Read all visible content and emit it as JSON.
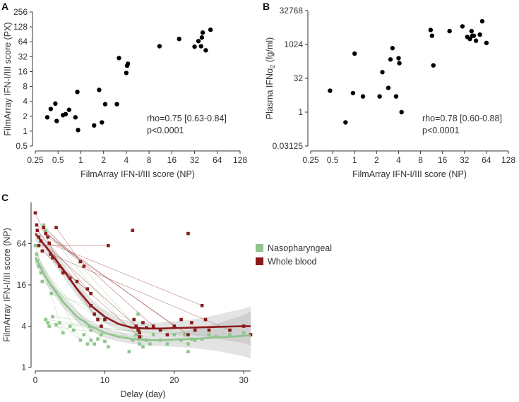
{
  "panel_labels": {
    "a": "A",
    "b": "B",
    "c": "C"
  },
  "colors": {
    "axis": "#333333",
    "points": "#000000",
    "nasopharyngeal": "#8fc48c",
    "whole_blood": "#8b1a1a",
    "band": "#9a9a9a"
  },
  "legend": {
    "nasopharyngeal": "Nasopharyngeal",
    "whole_blood": "Whole blood"
  },
  "panel_a": {
    "annotation": {
      "rho": "rho=0.75 [0.63-0.84]",
      "p": "p<0.0001"
    }
  },
  "panel_b": {
    "annotation": {
      "rho": "rho=0.78 [0.60-0.88]",
      "p": "p<0.0001"
    }
  },
  "chart_data": [
    {
      "id": "A",
      "type": "scatter",
      "xlabel": "FilmArray IFN-I/III score (NP)",
      "ylabel": "FilmArray IFN-I/III score (PX)",
      "xscale": "log2",
      "yscale": "log2",
      "xlim": [
        0.25,
        128
      ],
      "ylim": [
        0.5,
        256
      ],
      "xticks": [
        0.25,
        0.5,
        1,
        2,
        4,
        8,
        16,
        32,
        64,
        128
      ],
      "xtick_labels": [
        "0.25",
        "0.5",
        "1",
        "2",
        "4",
        "8",
        "16",
        "32",
        "64",
        "128"
      ],
      "yticks": [
        0.5,
        1,
        2,
        4,
        8,
        16,
        32,
        64,
        128,
        256
      ],
      "ytick_labels": [
        "0.5",
        "1",
        "2",
        "4",
        "8",
        "16",
        "32",
        "64",
        "128",
        "256"
      ],
      "x": [
        0.36,
        0.4,
        0.46,
        0.48,
        0.58,
        0.63,
        0.7,
        0.85,
        0.92,
        0.9,
        1.5,
        1.75,
        1.9,
        2.1,
        3.0,
        3.2,
        4.0,
        4.1,
        4.2,
        11,
        20,
        32,
        36,
        39,
        40,
        41,
        45,
        52
      ],
      "y": [
        1.9,
        2.8,
        3.6,
        1.6,
        2.1,
        2.2,
        2.7,
        1.9,
        1.05,
        6.2,
        1.3,
        6.8,
        1.5,
        3.5,
        3.5,
        30,
        15,
        21,
        23,
        52,
        73,
        51,
        66,
        52,
        78,
        98,
        43,
        112
      ]
    },
    {
      "id": "B",
      "type": "scatter",
      "xlabel": "FilmArray IFN-I/III score (NP)",
      "ylabel": "Plasma IFNα2 (fg/ml)",
      "xscale": "log2",
      "yscale": "log2",
      "xlim": [
        0.25,
        128
      ],
      "ylim": [
        0.03125,
        32768
      ],
      "xticks": [
        0.25,
        0.5,
        1,
        2,
        4,
        8,
        16,
        32,
        64,
        128
      ],
      "xtick_labels": [
        "0.25",
        "0.5",
        "1",
        "2",
        "4",
        "8",
        "16",
        "32",
        "64",
        "128"
      ],
      "yticks": [
        0.03125,
        1,
        32,
        1024,
        32768
      ],
      "ytick_labels": [
        "0.03125",
        "1",
        "32",
        "1024",
        "32768"
      ],
      "x": [
        0.46,
        0.75,
        0.95,
        1.0,
        1.3,
        2.2,
        2.4,
        2.9,
        3.1,
        3.3,
        3.7,
        4.0,
        4.1,
        4.4,
        11,
        11.5,
        12,
        20,
        30,
        35,
        38,
        40,
        41,
        43,
        46,
        52,
        56,
        64
      ],
      "y": [
        9,
        0.35,
        7,
        400,
        5,
        5,
        60,
        12,
        220,
        700,
        5,
        250,
        150,
        1,
        4500,
        2500,
        120,
        4000,
        6500,
        2200,
        1800,
        4000,
        2500,
        2500,
        1500,
        2800,
        11000,
        1200
      ]
    },
    {
      "id": "C",
      "type": "scatter",
      "xlabel": "Delay (day)",
      "ylabel": "FilmArray IFN-I/III score (NP)",
      "yscale": "log2",
      "xlim": [
        0,
        31
      ],
      "ylim": [
        1,
        256
      ],
      "xticks": [
        0,
        10,
        20,
        30
      ],
      "xtick_labels": [
        "0",
        "10",
        "20",
        "30"
      ],
      "yticks": [
        1,
        4,
        16,
        64
      ],
      "ytick_labels": [
        "1",
        "4",
        "16",
        "64"
      ],
      "series": [
        {
          "name": "Nasopharyngeal",
          "x": [
            0,
            0.2,
            0.3,
            0.5,
            0.8,
            1,
            1.2,
            1.5,
            1.5,
            1.8,
            2,
            2.3,
            2.5,
            3,
            3.5,
            4,
            5,
            5.5,
            6.5,
            7,
            7.5,
            7.8,
            8,
            8,
            8.5,
            9,
            9.5,
            10,
            10.5,
            13.5,
            14,
            14.5,
            14.8,
            15,
            15,
            15.2,
            15.5,
            16,
            16.5,
            17,
            18,
            19,
            20,
            21,
            21.5,
            22,
            22,
            22.5,
            23,
            24,
            25,
            26,
            28,
            30
          ],
          "y": [
            60,
            45,
            36,
            30,
            24,
            18,
            120,
            100,
            5,
            4.5,
            4,
            12,
            5.5,
            4.2,
            4.5,
            3.2,
            4,
            3.5,
            2.5,
            3,
            2.2,
            4,
            3.5,
            2.5,
            2.2,
            2.6,
            3,
            2.4,
            2,
            1.7,
            2.5,
            3,
            6,
            3.5,
            2.2,
            2.8,
            2,
            2.5,
            2.2,
            3,
            2.5,
            2.2,
            3,
            2.5,
            3,
            2.2,
            1.7,
            2.6,
            2.5,
            2.6,
            3,
            2.8,
            3,
            3.2
          ]
        },
        {
          "name": "Whole blood",
          "x": [
            0,
            0.2,
            0.3,
            0.5,
            0.5,
            0.8,
            1,
            1.2,
            1.5,
            1.8,
            2,
            2.2,
            2.5,
            3,
            3.5,
            4,
            5,
            6,
            6.5,
            7,
            7.5,
            8,
            8,
            8.5,
            9,
            9.5,
            10,
            10.5,
            14,
            14.2,
            14.5,
            14.8,
            15,
            15,
            15.5,
            16,
            17,
            18,
            19,
            20,
            21,
            22,
            22,
            22.5,
            23,
            24,
            24.5,
            25,
            28,
            30,
            31
          ],
          "y": [
            180,
            120,
            100,
            80,
            60,
            70,
            50,
            110,
            90,
            80,
            65,
            45,
            40,
            110,
            30,
            24,
            20,
            18,
            35,
            30,
            14,
            12,
            8,
            6,
            5,
            4,
            5,
            60,
            100,
            5,
            4,
            3.5,
            3.2,
            2.8,
            4.5,
            3.8,
            4,
            3.5,
            3,
            4,
            5,
            90,
            3,
            4.5,
            3.5,
            8,
            5,
            3.5,
            3.5,
            4,
            3
          ]
        }
      ],
      "fits": [
        {
          "name": "Nasopharyngeal",
          "x": [
            0,
            2,
            4,
            6,
            8,
            10,
            12,
            14,
            16,
            18,
            20,
            22,
            24,
            26,
            28,
            30,
            31
          ],
          "y": [
            40,
            17,
            9,
            5.5,
            4,
            3.2,
            2.8,
            2.6,
            2.5,
            2.5,
            2.55,
            2.6,
            2.65,
            2.75,
            2.8,
            2.9,
            2.95
          ],
          "lower": [
            32,
            14,
            7.5,
            4.6,
            3.4,
            2.7,
            2.4,
            2.2,
            2.1,
            2.05,
            2.0,
            1.95,
            1.85,
            1.75,
            1.6,
            1.45,
            1.35
          ],
          "upper": [
            50,
            21,
            11,
            6.6,
            4.7,
            3.8,
            3.3,
            3.1,
            3.0,
            3.05,
            3.2,
            3.5,
            3.8,
            4.3,
            5.0,
            5.8,
            6.5
          ]
        },
        {
          "name": "Whole blood",
          "x": [
            0,
            2,
            4,
            6,
            8,
            10,
            12,
            14,
            16,
            18,
            20,
            22,
            24,
            26,
            28,
            30,
            31
          ],
          "y": [
            90,
            50,
            27,
            14,
            8,
            5.5,
            4.3,
            3.8,
            3.7,
            3.7,
            3.75,
            3.8,
            3.85,
            3.9,
            3.95,
            4.0,
            4.0
          ],
          "lower": [
            72,
            40,
            21,
            11,
            6.4,
            4.5,
            3.6,
            3.2,
            3.1,
            3.05,
            3.0,
            2.95,
            2.8,
            2.65,
            2.45,
            2.25,
            2.1
          ],
          "upper": [
            112,
            62,
            34,
            18,
            10,
            6.8,
            5.2,
            4.6,
            4.5,
            4.5,
            4.7,
            4.9,
            5.3,
            5.8,
            6.5,
            7.2,
            7.8
          ]
        }
      ]
    }
  ]
}
